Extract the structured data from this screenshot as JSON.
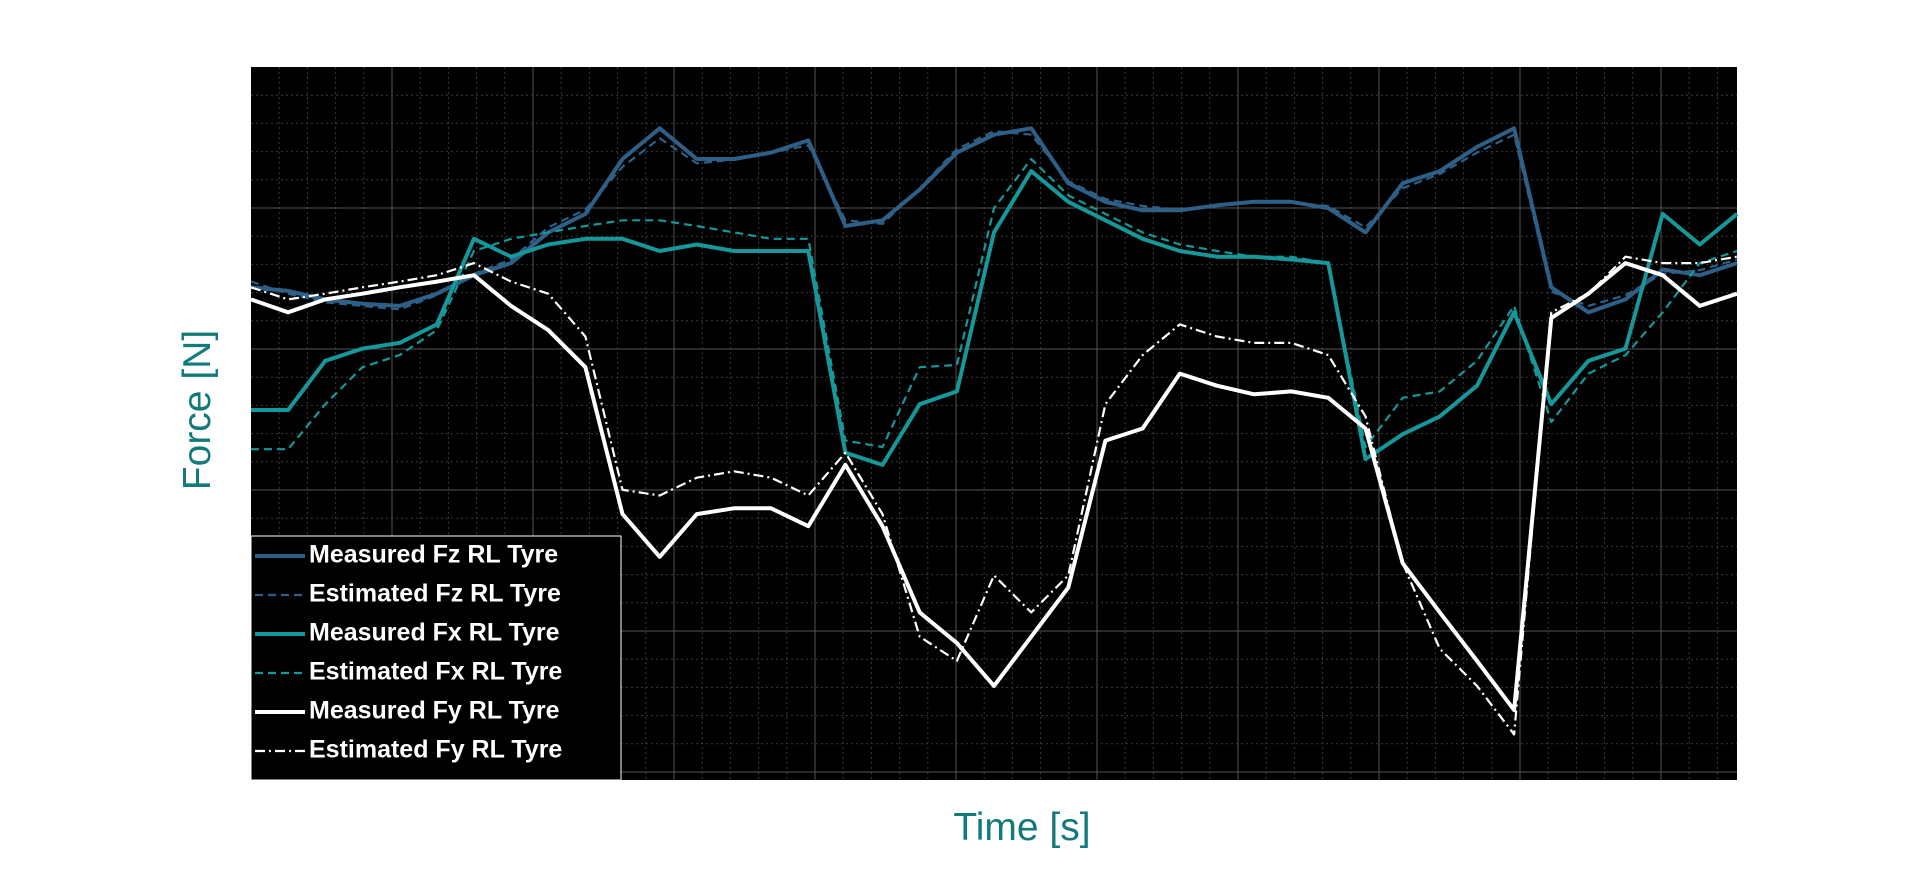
{
  "chart_data": {
    "type": "line",
    "xlabel": "Time [s]",
    "ylabel": "Force [N]",
    "xlim": [
      0,
      100
    ],
    "ylim": [
      0,
      100
    ],
    "grid": true,
    "legend": "lower left",
    "x": [
      0,
      2.5,
      5,
      7.5,
      10,
      12.5,
      15,
      17.5,
      20,
      22.5,
      25,
      27.5,
      30,
      32.5,
      35,
      37.5,
      40,
      42.5,
      45,
      47.5,
      50,
      52.5,
      55,
      57.5,
      60,
      62.5,
      65,
      67.5,
      70,
      72.5,
      75,
      77.5,
      80,
      82.5,
      85,
      87.5,
      90,
      92.5,
      95,
      97.5,
      100
    ],
    "series": [
      {
        "name": "Measured Fz RL Tyre",
        "color": "#2e5f86",
        "linestyle": "solid",
        "values": [
          69.1,
          68.6,
          67.4,
          66.8,
          66.5,
          68.2,
          70.8,
          72.5,
          76.8,
          79.4,
          87.1,
          91.4,
          87.1,
          87.1,
          88.0,
          89.7,
          77.7,
          78.5,
          82.8,
          88.0,
          90.5,
          91.4,
          83.7,
          81.1,
          79.9,
          79.9,
          80.6,
          81.1,
          81.1,
          80.2,
          76.8,
          83.7,
          85.4,
          88.8,
          91.4,
          69.1,
          65.6,
          67.4,
          71.6,
          70.8,
          72.5
        ]
      },
      {
        "name": "Estimated Fz RL Tyre",
        "color": "#2e5f86",
        "linestyle": "dashed",
        "values": [
          69.9,
          68.2,
          67.0,
          66.5,
          66.0,
          68.0,
          71.0,
          73.0,
          77.5,
          80.0,
          86.0,
          90.0,
          86.5,
          87.0,
          88.0,
          89.0,
          78.5,
          78.0,
          83.0,
          88.5,
          91.0,
          90.5,
          84.0,
          81.5,
          80.5,
          80.0,
          80.5,
          81.0,
          81.0,
          80.5,
          77.5,
          83.0,
          85.0,
          88.0,
          90.5,
          68.5,
          66.5,
          68.0,
          71.0,
          71.5,
          73.0
        ]
      },
      {
        "name": "Measured Fx RL Tyre",
        "color": "#16979a",
        "linestyle": "solid",
        "values": [
          51.9,
          51.9,
          58.8,
          60.5,
          61.3,
          63.9,
          75.9,
          73.4,
          75.1,
          75.9,
          75.9,
          74.2,
          75.1,
          74.2,
          74.2,
          74.2,
          45.9,
          44.2,
          52.7,
          54.5,
          76.8,
          85.4,
          81.1,
          78.5,
          75.9,
          74.2,
          73.4,
          73.4,
          73.0,
          72.5,
          45.0,
          48.5,
          51.0,
          55.3,
          65.6,
          52.7,
          58.8,
          60.5,
          79.4,
          75.1,
          79.4
        ]
      },
      {
        "name": "Estimated Fx RL Tyre",
        "color": "#16979a",
        "linestyle": "dashed",
        "values": [
          46.4,
          46.4,
          52.7,
          57.9,
          59.6,
          63.1,
          74.2,
          75.9,
          76.8,
          77.7,
          78.5,
          78.5,
          77.7,
          76.8,
          75.9,
          75.9,
          47.6,
          46.7,
          57.9,
          58.2,
          80.2,
          87.1,
          82.0,
          79.4,
          76.8,
          75.1,
          74.2,
          73.4,
          73.4,
          72.5,
          46.7,
          53.6,
          54.5,
          58.8,
          66.5,
          50.2,
          57.0,
          59.6,
          65.6,
          72.5,
          74.2
        ]
      },
      {
        "name": "Measured Fy RL Tyre",
        "color": "#ffffff",
        "linestyle": "solid",
        "values": [
          67.4,
          65.6,
          67.4,
          68.2,
          69.1,
          69.9,
          70.8,
          66.5,
          63.1,
          57.9,
          37.3,
          31.3,
          37.3,
          38.1,
          38.1,
          35.6,
          44.2,
          35.6,
          23.5,
          19.2,
          13.2,
          20.1,
          27.0,
          47.6,
          49.3,
          57.0,
          55.3,
          54.1,
          54.5,
          53.6,
          49.3,
          30.4,
          23.5,
          16.7,
          9.8,
          64.8,
          68.2,
          72.5,
          70.8,
          66.5,
          68.2
        ]
      },
      {
        "name": "Estimated Fy RL Tyre",
        "color": "#ffffff",
        "linestyle": "dashdot",
        "values": [
          69.1,
          67.4,
          68.2,
          69.1,
          69.9,
          70.8,
          72.5,
          69.9,
          68.2,
          62.2,
          40.7,
          39.9,
          42.4,
          43.3,
          42.4,
          39.9,
          45.9,
          37.3,
          20.1,
          16.7,
          28.7,
          23.5,
          28.7,
          52.7,
          59.6,
          63.9,
          62.2,
          61.3,
          61.3,
          59.6,
          51.0,
          30.4,
          18.4,
          13.2,
          6.4,
          65.6,
          68.2,
          73.4,
          72.5,
          72.5,
          73.4
        ]
      }
    ]
  }
}
